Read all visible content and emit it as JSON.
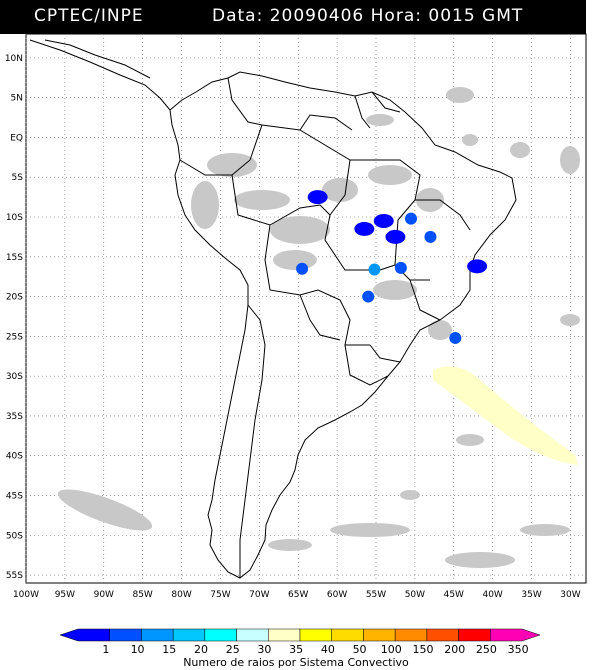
{
  "header": {
    "source": "CPTEC/INPE",
    "datetime": "Data: 20090406 Hora: 0015 GMT"
  },
  "map": {
    "lat_labels": [
      "10N",
      "5N",
      "EQ",
      "5S",
      "10S",
      "15S",
      "20S",
      "25S",
      "30S",
      "35S",
      "40S",
      "45S",
      "50S",
      "55S"
    ],
    "lon_labels": [
      "100W",
      "95W",
      "90W",
      "85W",
      "80W",
      "75W",
      "70W",
      "65W",
      "60W",
      "55W",
      "50W",
      "45W",
      "40W",
      "35W",
      "30W"
    ],
    "lat_range": [
      -56,
      13
    ],
    "lon_range": [
      -100,
      -28
    ],
    "land_color": "#ffffff",
    "cloud_color": "#c8c8c8",
    "lightning_clusters": [
      {
        "lon": -62.5,
        "lat": -7.5,
        "class": 1
      },
      {
        "lon": -56.5,
        "lat": -11.5,
        "class": 1
      },
      {
        "lon": -52.5,
        "lat": -12.5,
        "class": 1
      },
      {
        "lon": -54.0,
        "lat": -10.5,
        "class": 1
      },
      {
        "lon": -64.5,
        "lat": -16.5,
        "class": 2
      },
      {
        "lon": -55.2,
        "lat": -16.6,
        "class": 3
      },
      {
        "lon": -51.8,
        "lat": -16.4,
        "class": 2
      },
      {
        "lon": -50.5,
        "lat": -10.2,
        "class": 2
      },
      {
        "lon": -48.0,
        "lat": -12.5,
        "class": 2
      },
      {
        "lon": -44.8,
        "lat": -25.2,
        "class": 2
      },
      {
        "lon": -42.0,
        "lat": -16.2,
        "class": 1
      },
      {
        "lon": -56.0,
        "lat": -20.0,
        "class": 2
      }
    ]
  },
  "legend": {
    "labels": [
      "1",
      "10",
      "15",
      "20",
      "25",
      "30",
      "35",
      "40",
      "50",
      "100",
      "150",
      "200",
      "250",
      "350"
    ],
    "colors": [
      "#0000ff",
      "#0050ff",
      "#0096ff",
      "#00c8ff",
      "#00ffff",
      "#c8ffff",
      "#ffffc8",
      "#ffff00",
      "#ffdc00",
      "#ffb400",
      "#ff8c00",
      "#ff5000",
      "#ff0000",
      "#ff00b4"
    ],
    "title": "Numero de raios por Sistema Convectivo"
  }
}
